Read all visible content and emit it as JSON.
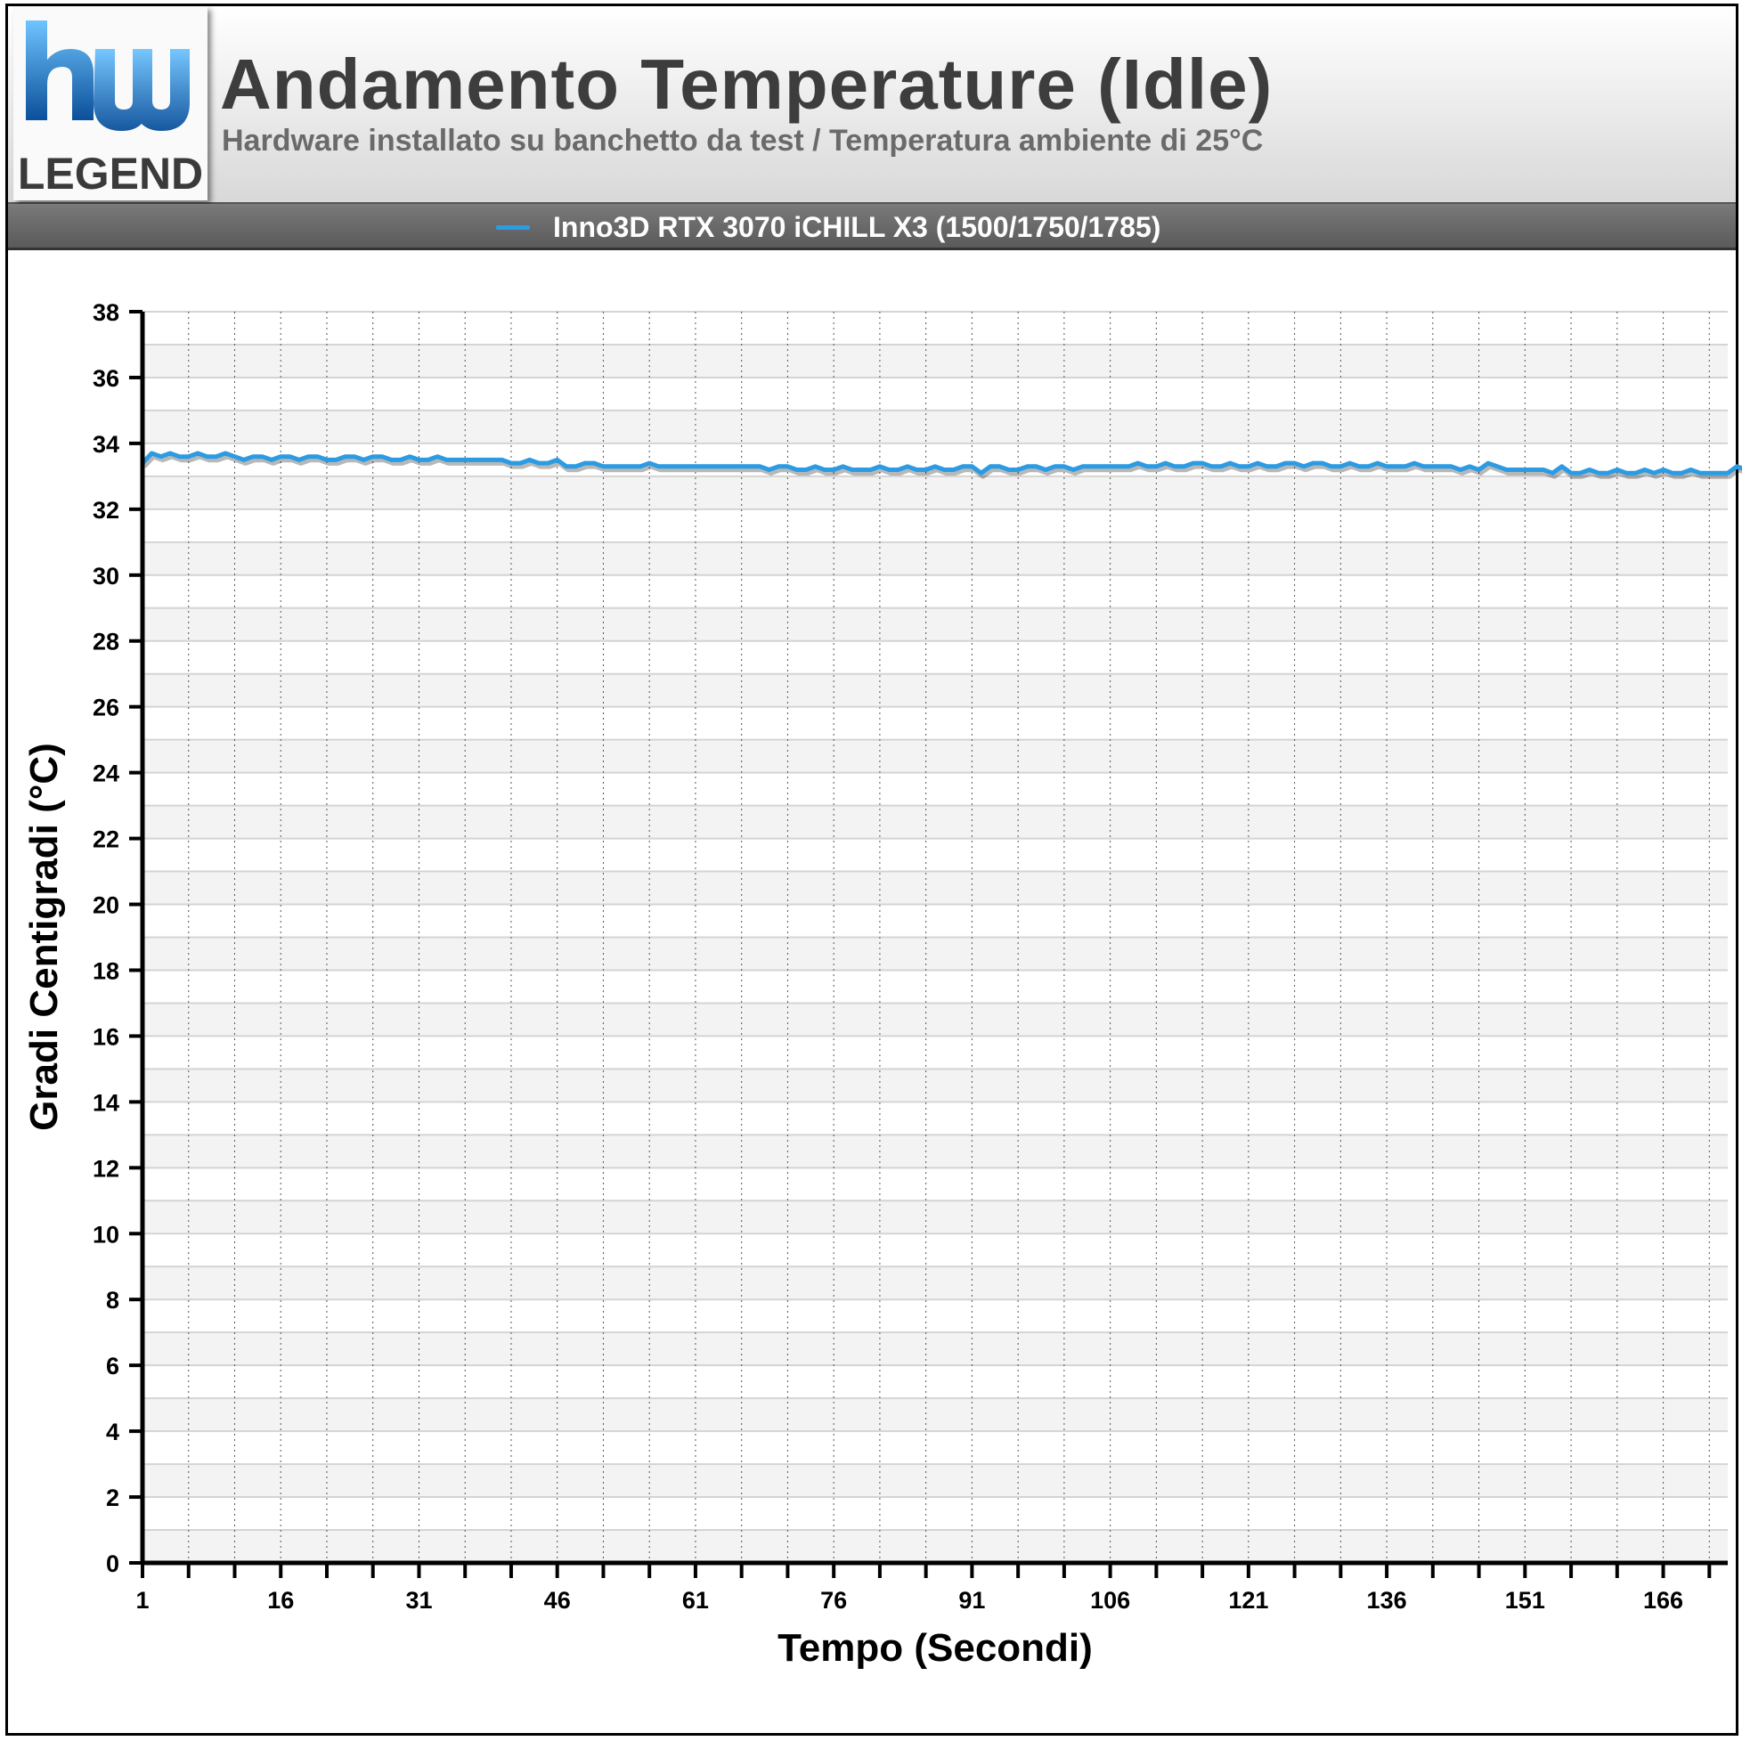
{
  "brand": {
    "logo_text": "LEGEND"
  },
  "header": {
    "title": "Andamento Temperature (Idle)",
    "subtitle": "Hardware installato su banchetto da test / Temperatura ambiente di 25°C"
  },
  "legend": {
    "label": "Inno3D RTX 3070 iCHILL X3 (1500/1750/1785)",
    "color": "#2b9be3"
  },
  "chart_data": {
    "type": "line",
    "title": "Andamento Temperature (Idle)",
    "subtitle": "Hardware installato su banchetto da test / Temperatura ambiente di 25°C",
    "xlabel": "Tempo (Secondi)",
    "ylabel": "Gradi Centigradi (°C)",
    "ylim": [
      0,
      38
    ],
    "yticks": [
      0,
      2,
      4,
      6,
      8,
      10,
      12,
      14,
      16,
      18,
      20,
      22,
      24,
      26,
      28,
      30,
      32,
      34,
      36,
      38
    ],
    "xlim": [
      1,
      173
    ],
    "xticks": [
      1,
      16,
      31,
      46,
      61,
      76,
      91,
      106,
      121,
      136,
      151,
      166
    ],
    "grid": true,
    "legend_position": "top",
    "series": [
      {
        "name": "Inno3D RTX 3070 iCHILL X3 (1500/1750/1785)",
        "color": "#2b9be3",
        "x_start": 1,
        "x_step": 1,
        "values": [
          33.4,
          33.7,
          33.6,
          33.7,
          33.6,
          33.6,
          33.7,
          33.6,
          33.6,
          33.7,
          33.6,
          33.5,
          33.6,
          33.6,
          33.5,
          33.6,
          33.6,
          33.5,
          33.6,
          33.6,
          33.5,
          33.5,
          33.6,
          33.6,
          33.5,
          33.6,
          33.6,
          33.5,
          33.5,
          33.6,
          33.5,
          33.5,
          33.6,
          33.5,
          33.5,
          33.5,
          33.5,
          33.5,
          33.5,
          33.5,
          33.4,
          33.4,
          33.5,
          33.4,
          33.4,
          33.5,
          33.3,
          33.3,
          33.4,
          33.4,
          33.3,
          33.3,
          33.3,
          33.3,
          33.3,
          33.4,
          33.3,
          33.3,
          33.3,
          33.3,
          33.3,
          33.3,
          33.3,
          33.3,
          33.3,
          33.3,
          33.3,
          33.3,
          33.2,
          33.3,
          33.3,
          33.2,
          33.2,
          33.3,
          33.2,
          33.2,
          33.3,
          33.2,
          33.2,
          33.2,
          33.3,
          33.2,
          33.2,
          33.3,
          33.2,
          33.2,
          33.3,
          33.2,
          33.2,
          33.3,
          33.3,
          33.1,
          33.3,
          33.3,
          33.2,
          33.2,
          33.3,
          33.3,
          33.2,
          33.3,
          33.3,
          33.2,
          33.3,
          33.3,
          33.3,
          33.3,
          33.3,
          33.3,
          33.4,
          33.3,
          33.3,
          33.4,
          33.3,
          33.3,
          33.4,
          33.4,
          33.3,
          33.3,
          33.4,
          33.3,
          33.3,
          33.4,
          33.3,
          33.3,
          33.4,
          33.4,
          33.3,
          33.4,
          33.4,
          33.3,
          33.3,
          33.4,
          33.3,
          33.3,
          33.4,
          33.3,
          33.3,
          33.3,
          33.4,
          33.3,
          33.3,
          33.3,
          33.3,
          33.2,
          33.3,
          33.2,
          33.4,
          33.3,
          33.2,
          33.2,
          33.2,
          33.2,
          33.2,
          33.1,
          33.3,
          33.1,
          33.1,
          33.2,
          33.1,
          33.1,
          33.2,
          33.1,
          33.1,
          33.2,
          33.1,
          33.2,
          33.1,
          33.1,
          33.2,
          33.1,
          33.1,
          33.1,
          33.1,
          33.3,
          33.2,
          33.1
        ]
      }
    ]
  }
}
